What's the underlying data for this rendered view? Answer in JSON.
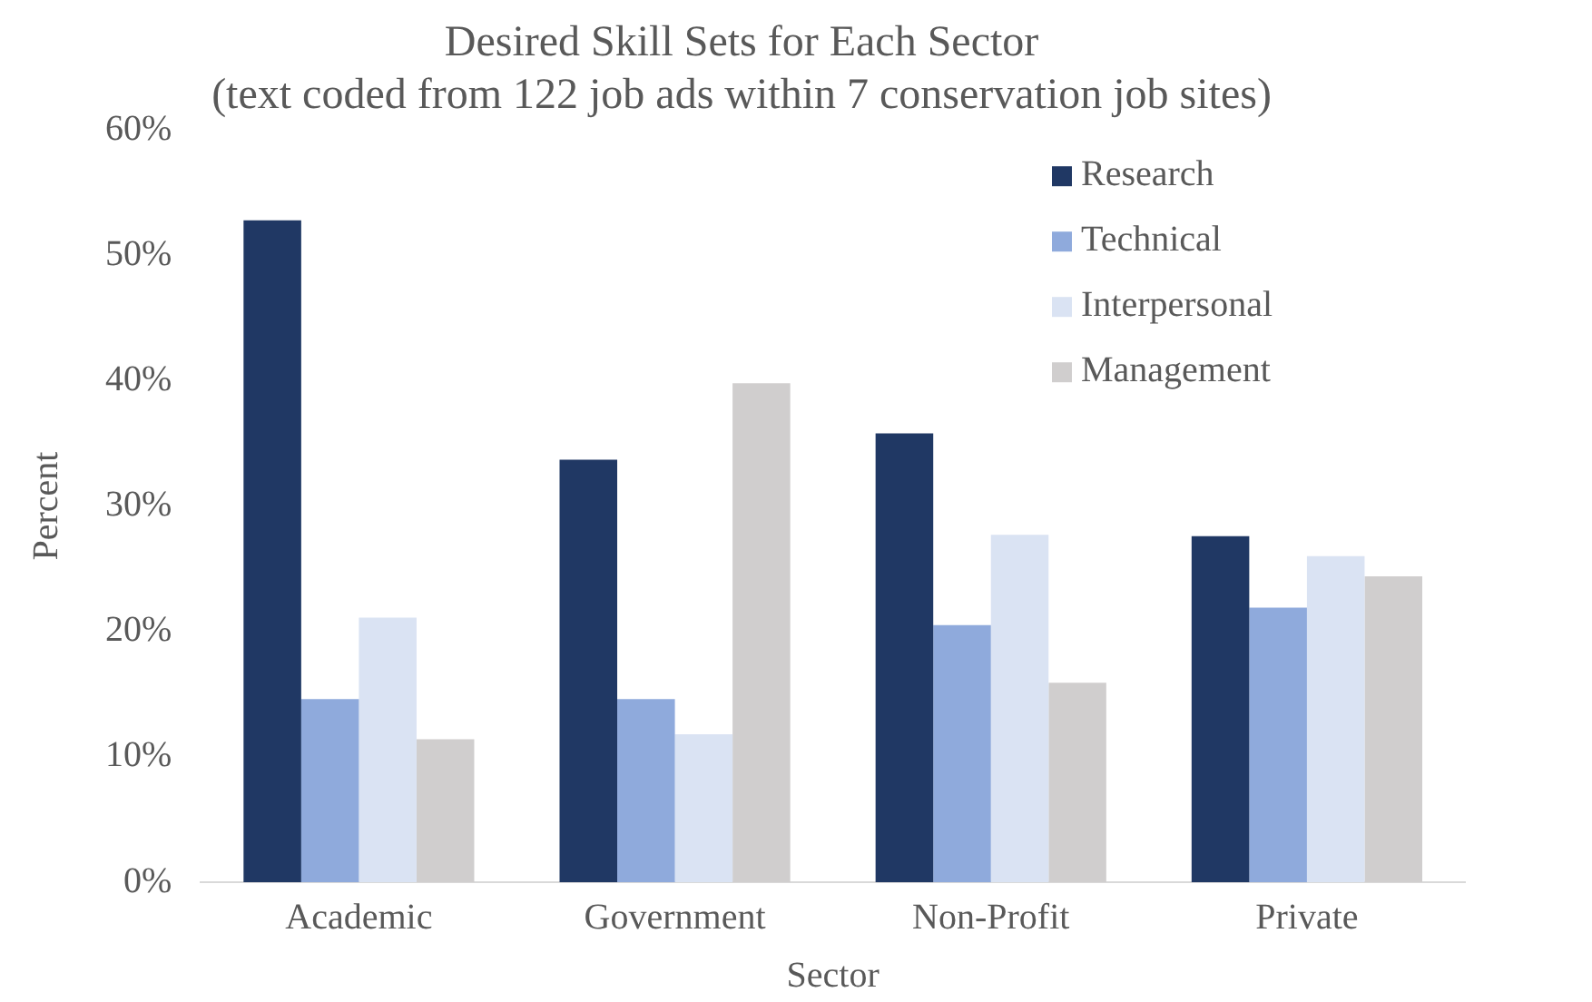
{
  "chart_data": {
    "type": "bar",
    "title": [
      "Desired Skill Sets for Each Sector",
      "(text coded from 122 job ads within 7 conservation job sites)"
    ],
    "xlabel": "Sector",
    "ylabel": "Percent",
    "categories": [
      "Academic",
      "Government",
      "Non-Profit",
      "Private"
    ],
    "series": [
      {
        "name": "Research",
        "color": "#203864",
        "values": [
          52.8,
          33.7,
          35.8,
          27.6
        ]
      },
      {
        "name": "Technical",
        "color": "#8faadc",
        "values": [
          14.6,
          14.6,
          20.5,
          21.9
        ]
      },
      {
        "name": "Interpersonal",
        "color": "#dae3f3",
        "values": [
          21.1,
          11.8,
          27.7,
          26.0
        ]
      },
      {
        "name": "Management",
        "color": "#d0cece",
        "values": [
          11.4,
          39.8,
          15.9,
          24.4
        ]
      }
    ],
    "ylim": [
      0,
      60
    ],
    "yticks": [
      {
        "value": 0,
        "label": "0%"
      },
      {
        "value": 10,
        "label": "10%"
      },
      {
        "value": 20,
        "label": "20%"
      },
      {
        "value": 30,
        "label": "30%"
      },
      {
        "value": 40,
        "label": "40%"
      },
      {
        "value": 50,
        "label": "50%"
      },
      {
        "value": 60,
        "label": "60%"
      }
    ],
    "grid": false,
    "legend": "top right"
  }
}
